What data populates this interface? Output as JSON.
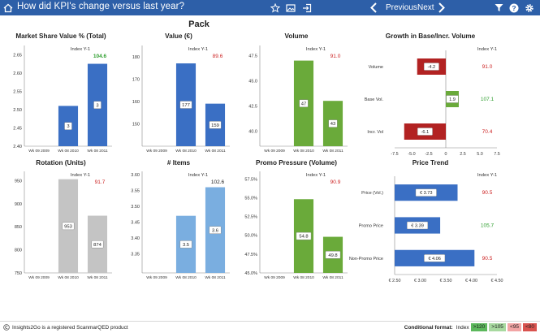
{
  "header": {
    "title": "How did KPI's change versus last year?",
    "previous_label": "Previous",
    "next_label": "Next",
    "bg_color": "#2d5fa8"
  },
  "section_title": "Pack",
  "index_label": "Index Y-1",
  "footer": {
    "copyright": "Insights2Go is a registered ScanmarQED product",
    "format_label": "Conditional format:",
    "index_word": "Index",
    "chips": [
      {
        "label": ">120",
        "color": "#5cb85c"
      },
      {
        "label": ">105",
        "color": "#a8d9a0"
      },
      {
        "label": "<95",
        "color": "#f2a5a5"
      },
      {
        "label": "<80",
        "color": "#d9534f"
      }
    ]
  },
  "chart_data": [
    {
      "type": "bar",
      "title": "Market Share Value % (Total)",
      "categories": [
        "Wk 09 2009",
        "Wk 08 2010",
        "Wk 08 2011"
      ],
      "values": [
        null,
        2.51,
        2.625
      ],
      "labels": [
        "",
        "3",
        "3"
      ],
      "ylim": [
        2.4,
        2.675
      ],
      "yticks": [
        2.4,
        2.45,
        2.5,
        2.55,
        2.6,
        2.65
      ],
      "ytick_labels": [
        "2.40",
        "2.45",
        "2.50",
        "2.55",
        "2.60",
        "2.65"
      ],
      "color": "#3a6fc4",
      "index": "104.6",
      "index_color": "#2e9e2e"
    },
    {
      "type": "bar",
      "title": "Value (€)",
      "categories": [
        "Wk 09 2009",
        "Wk 08 2010",
        "Wk 08 2011"
      ],
      "values": [
        null,
        177,
        159
      ],
      "labels": [
        "",
        "177",
        "159"
      ],
      "ylim": [
        140,
        185
      ],
      "yticks": [
        150,
        160,
        170,
        180
      ],
      "ytick_labels": [
        "150",
        "160",
        "170",
        "180"
      ],
      "color": "#3a6fc4",
      "index": "89.6",
      "index_color": "#cc2222"
    },
    {
      "type": "bar",
      "title": "Volume",
      "categories": [
        "Wk 09 2009",
        "Wk 08 2010",
        "Wk 08 2011"
      ],
      "values": [
        null,
        47,
        43
      ],
      "labels": [
        "",
        "47",
        "43"
      ],
      "ylim": [
        38.5,
        48.5
      ],
      "yticks": [
        40.0,
        42.5,
        45.0,
        47.5
      ],
      "ytick_labels": [
        "40.0",
        "42.5",
        "45.0",
        "47.5"
      ],
      "color": "#6aaa3a",
      "index": "91.0",
      "index_color": "#cc2222"
    },
    {
      "type": "bar",
      "title": "Rotation (Units)",
      "categories": [
        "Wk 09 2009",
        "Wk 08 2010",
        "Wk 08 2011"
      ],
      "values": [
        null,
        953,
        874
      ],
      "labels": [
        "",
        "953",
        "874"
      ],
      "ylim": [
        750,
        970
      ],
      "yticks": [
        750,
        800,
        850,
        900,
        950
      ],
      "ytick_labels": [
        "750",
        "800",
        "850",
        "900",
        "950"
      ],
      "color": "#c4c4c4",
      "index": "91.7",
      "index_color": "#cc2222"
    },
    {
      "type": "bar",
      "title": "# Items",
      "categories": [
        "Wk 09 2009",
        "Wk 08 2010",
        "Wk 08 2011"
      ],
      "values": [
        null,
        3.47,
        3.56
      ],
      "labels": [
        "",
        "3.5",
        "3.6"
      ],
      "ylim": [
        3.29,
        3.61
      ],
      "yticks": [
        3.35,
        3.4,
        3.45,
        3.5,
        3.55,
        3.6
      ],
      "ytick_labels": [
        "3.35",
        "3.40",
        "3.45",
        "3.50",
        "3.55",
        "3.60"
      ],
      "color": "#7aaee0",
      "index": "102.6",
      "index_color": "#222222"
    },
    {
      "type": "bar",
      "title": "Promo Pressure (Volume)",
      "categories": [
        "Wk 09 2009",
        "Wk 08 2010",
        "Wk 08 2011"
      ],
      "values": [
        null,
        54.8,
        49.8
      ],
      "labels": [
        "",
        "54.8",
        "49.8"
      ],
      "ylim": [
        45.0,
        58.5
      ],
      "yticks": [
        45.0,
        47.5,
        50.0,
        52.5,
        55.0,
        57.5
      ],
      "ytick_labels": [
        "45.0%",
        "47.5%",
        "50.0%",
        "52.5%",
        "55.0%",
        "57.5%"
      ],
      "color": "#6aaa3a",
      "index": "90.9",
      "index_color": "#cc2222"
    },
    {
      "type": "bar",
      "orientation": "horizontal",
      "title": "Growth in Base/Incr. Volume",
      "categories": [
        "Volume",
        "Base Vol.",
        "Incr. Vol"
      ],
      "values": [
        -4.2,
        1.9,
        -6.1
      ],
      "labels": [
        "-4.2",
        "1.9",
        "-6.1"
      ],
      "colors": [
        "#b22222",
        "#6aaa3a",
        "#b22222"
      ],
      "xlim": [
        -7.5,
        7.5
      ],
      "xticks": [
        -7.5,
        -5.0,
        -2.5,
        0.0,
        2.5,
        5.0,
        7.5
      ],
      "xtick_labels": [
        "-7.5",
        "-5.0",
        "-2.5",
        "0",
        "2.5",
        "5.0",
        "7.5"
      ],
      "indices": [
        "91.0",
        "107.1",
        "70.4"
      ],
      "index_colors": [
        "#cc2222",
        "#2e9e2e",
        "#cc2222"
      ]
    },
    {
      "type": "bar",
      "orientation": "horizontal",
      "title": "Price Trend",
      "categories": [
        "Price (Vol.)",
        "Promo Price",
        "Non-Promo Price"
      ],
      "values": [
        3.73,
        3.39,
        4.06
      ],
      "labels": [
        "€ 3.73",
        "€ 3.39",
        "€ 4.06"
      ],
      "color": "#3a6fc4",
      "xlim": [
        2.5,
        4.5
      ],
      "xticks": [
        2.5,
        3.0,
        3.5,
        4.0,
        4.5
      ],
      "xtick_labels": [
        "€ 2.50",
        "€ 3.00",
        "€ 3.50",
        "€ 4.00",
        "€ 4.50"
      ],
      "indices": [
        "90.5",
        "105.7",
        "90.5"
      ],
      "index_colors": [
        "#cc2222",
        "#2e9e2e",
        "#cc2222"
      ]
    }
  ]
}
